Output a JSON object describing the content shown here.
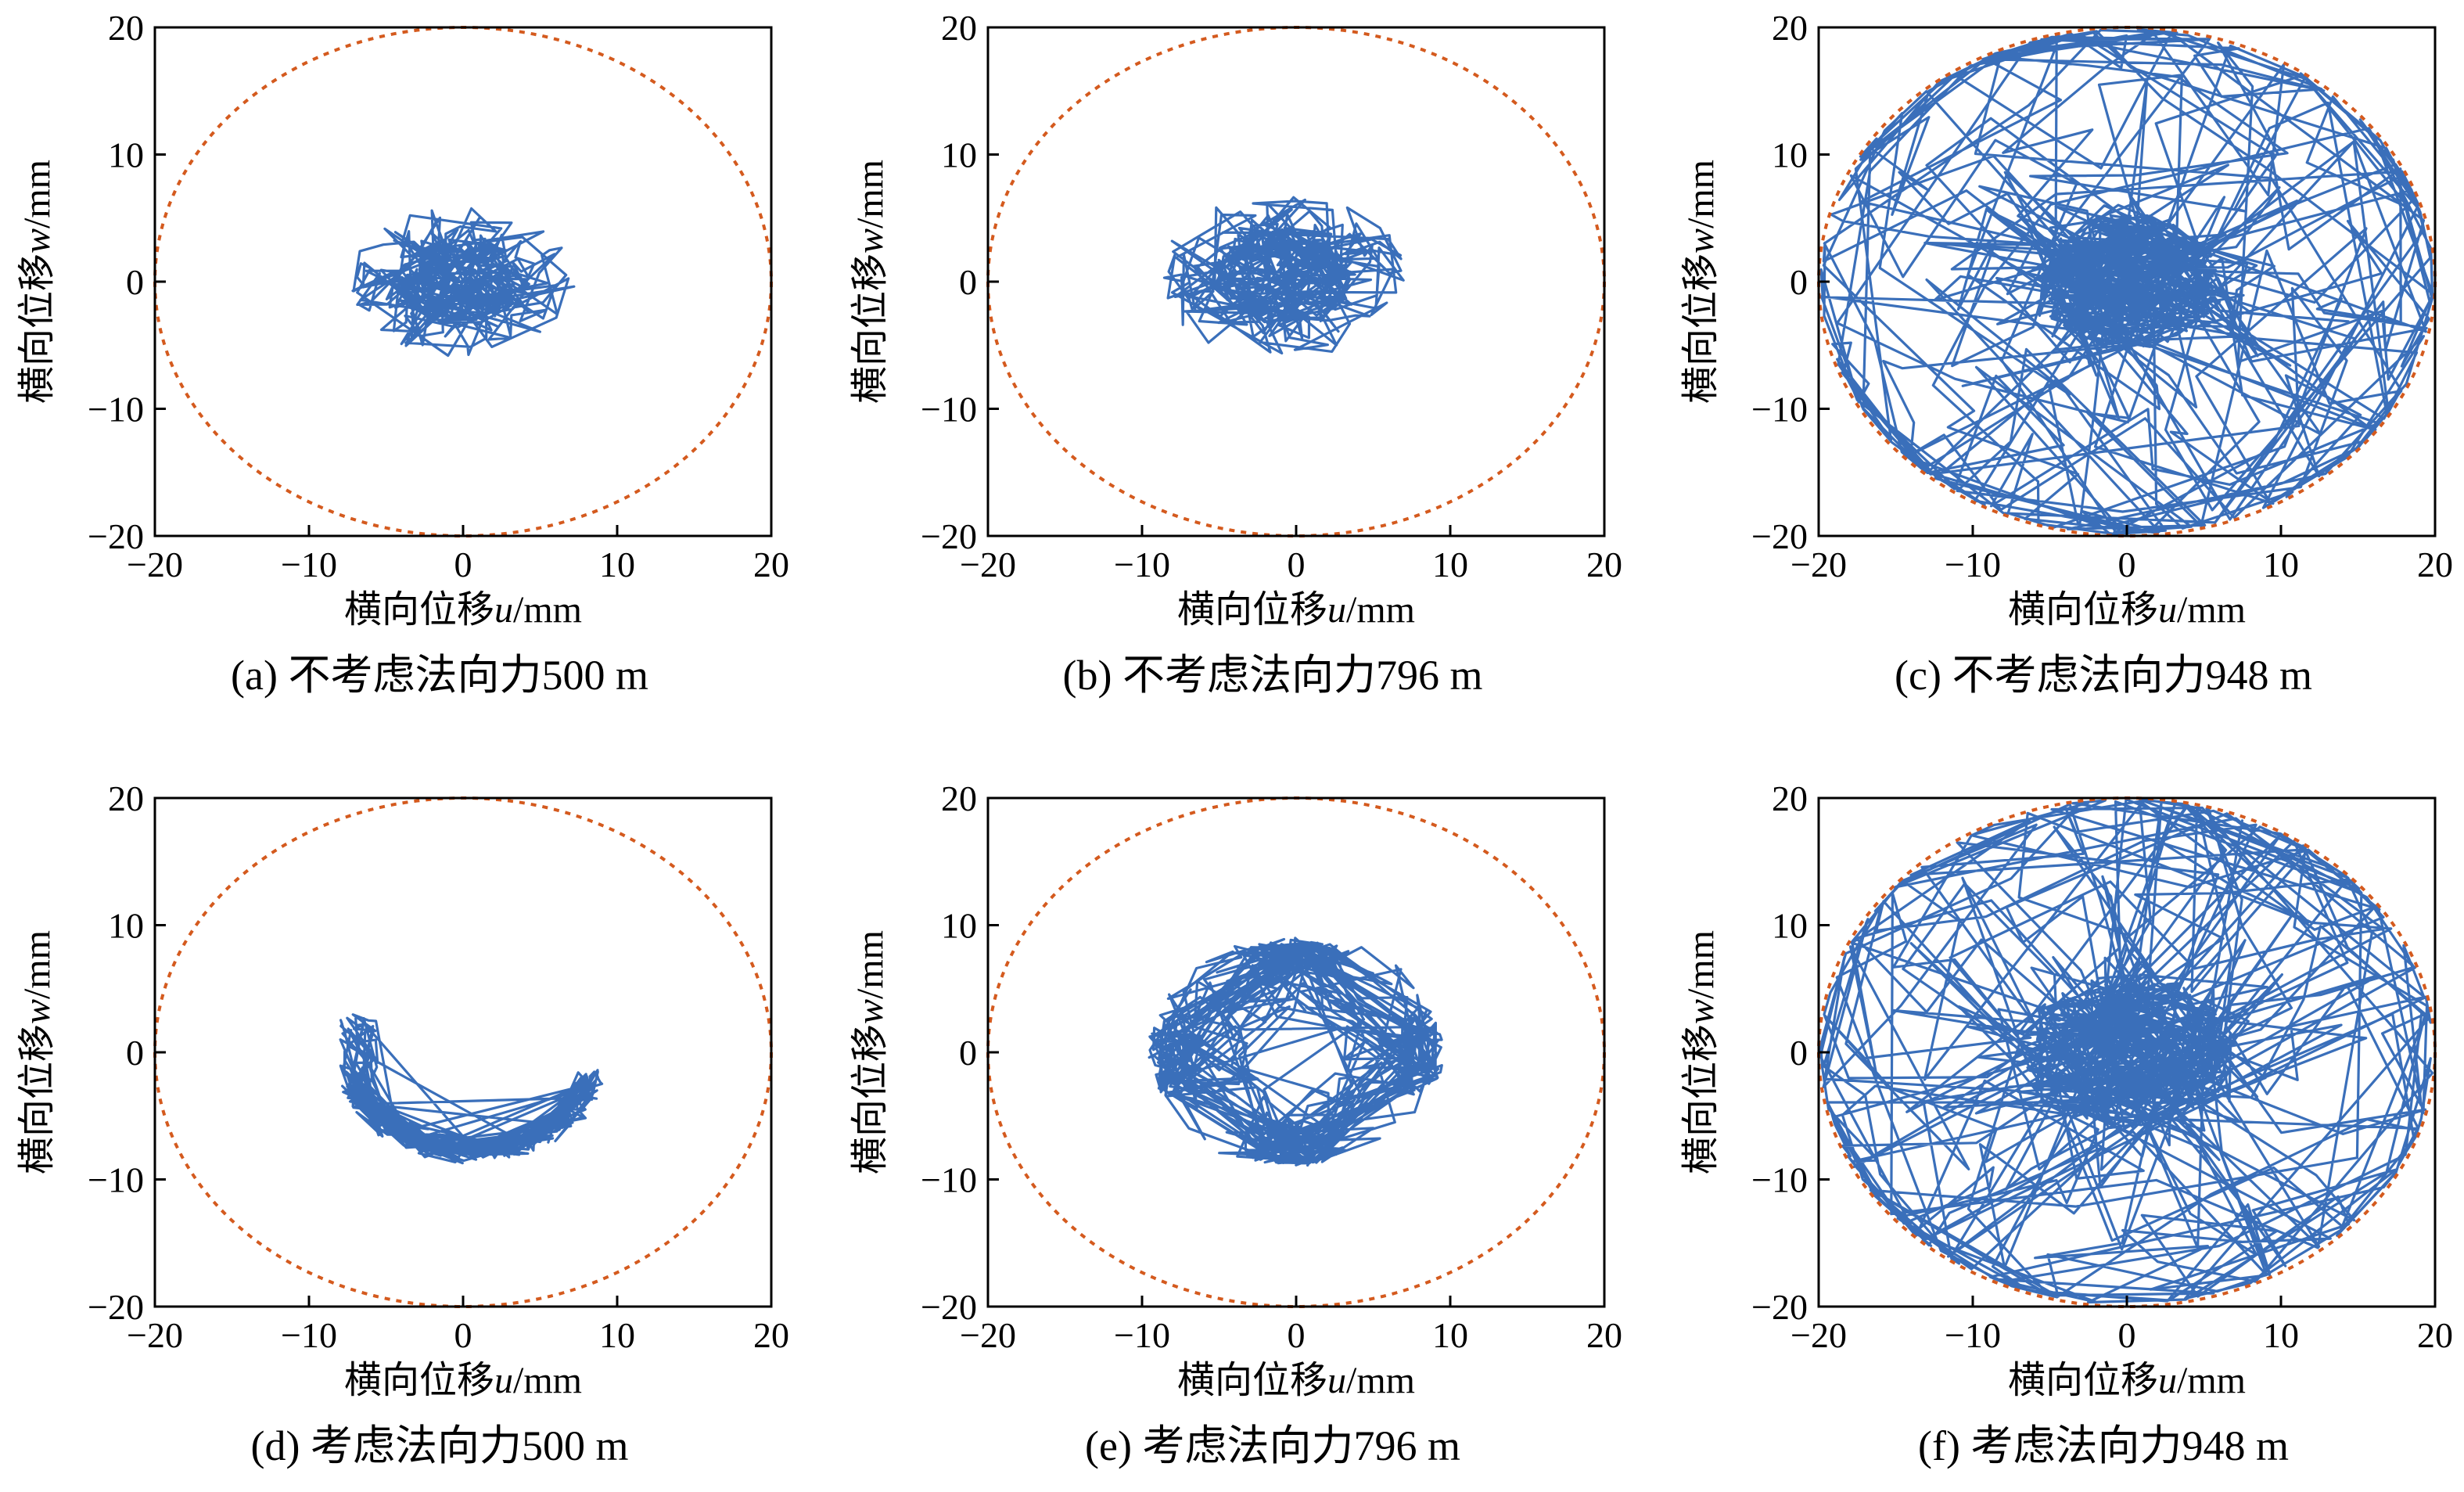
{
  "chart_data": [
    {
      "type": "line",
      "caption": "(a) 不考虑法向力500 m",
      "xlabel": "横向位移u/mm",
      "ylabel": "横向位移w/mm",
      "xlim": [
        -20,
        20
      ],
      "ylim": [
        -20,
        20
      ],
      "xticks": [
        -20,
        -10,
        0,
        10,
        20
      ],
      "yticks": [
        -20,
        -10,
        0,
        10,
        20
      ],
      "boundary_radius": 20,
      "orbit": {
        "pattern": "cluster",
        "center": [
          0,
          0
        ],
        "core_radius": 4,
        "outer_radius": 7,
        "n": 520,
        "seed": 11
      }
    },
    {
      "type": "line",
      "caption": "(b) 不考虑法向力796 m",
      "xlabel": "横向位移u/mm",
      "ylabel": "横向位移w/mm",
      "xlim": [
        -20,
        20
      ],
      "ylim": [
        -20,
        20
      ],
      "xticks": [
        -20,
        -10,
        0,
        10,
        20
      ],
      "yticks": [
        -20,
        -10,
        0,
        10,
        20
      ],
      "boundary_radius": 20,
      "orbit": {
        "pattern": "cluster",
        "center": [
          -1,
          0.5
        ],
        "core_radius": 4.5,
        "outer_radius": 7.8,
        "n": 520,
        "seed": 23
      }
    },
    {
      "type": "line",
      "caption": "(c) 不考虑法向力948 m",
      "xlabel": "横向位移u/mm",
      "ylabel": "横向位移w/mm",
      "xlim": [
        -20,
        20
      ],
      "ylim": [
        -20,
        20
      ],
      "xticks": [
        -20,
        -10,
        0,
        10,
        20
      ],
      "yticks": [
        -20,
        -10,
        0,
        10,
        20
      ],
      "boundary_radius": 20,
      "orbit": {
        "pattern": "wall",
        "center": [
          0,
          0
        ],
        "core_radius": 6,
        "outer_radius": 20,
        "n": 900,
        "seed": 37
      }
    },
    {
      "type": "line",
      "caption": "(d) 考虑法向力500 m",
      "xlabel": "横向位移u/mm",
      "ylabel": "横向位移w/mm",
      "xlim": [
        -20,
        20
      ],
      "ylim": [
        -20,
        20
      ],
      "xticks": [
        -20,
        -10,
        0,
        10,
        20
      ],
      "yticks": [
        -20,
        -10,
        0,
        10,
        20
      ],
      "boundary_radius": 20,
      "orbit": {
        "pattern": "crescent",
        "center": [
          0,
          0
        ],
        "core_radius": 1.2,
        "outer_radius": 8,
        "n": 520,
        "seed": 41
      }
    },
    {
      "type": "line",
      "caption": "(e) 考虑法向力796 m",
      "xlabel": "横向位移u/mm",
      "ylabel": "横向位移w/mm",
      "xlim": [
        -20,
        20
      ],
      "ylim": [
        -20,
        20
      ],
      "xticks": [
        -20,
        -10,
        0,
        10,
        20
      ],
      "yticks": [
        -20,
        -10,
        0,
        10,
        20
      ],
      "boundary_radius": 20,
      "orbit": {
        "pattern": "ring",
        "center": [
          0,
          0
        ],
        "core_radius": 7.8,
        "outer_radius": 9.5,
        "n": 640,
        "seed": 53
      }
    },
    {
      "type": "line",
      "caption": "(f) 考虑法向力948 m",
      "xlabel": "横向位移u/mm",
      "ylabel": "横向位移w/mm",
      "xlim": [
        -20,
        20
      ],
      "ylim": [
        -20,
        20
      ],
      "xticks": [
        -20,
        -10,
        0,
        10,
        20
      ],
      "yticks": [
        -20,
        -10,
        0,
        10,
        20
      ],
      "boundary_radius": 20,
      "orbit": {
        "pattern": "wall",
        "center": [
          0,
          0
        ],
        "core_radius": 7,
        "outer_radius": 20,
        "n": 900,
        "seed": 67
      }
    }
  ],
  "colors": {
    "orbit": "#3a6fba",
    "boundary": "#d45a1e"
  }
}
